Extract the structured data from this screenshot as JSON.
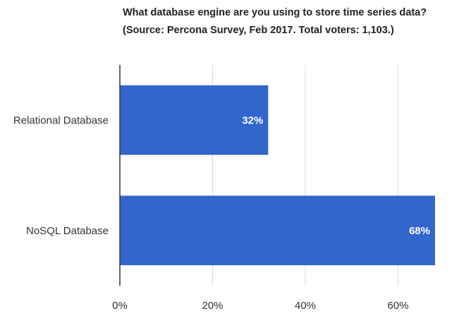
{
  "chart_data": {
    "type": "bar",
    "orientation": "horizontal",
    "title": "What database engine are you using to store time series data?",
    "subtitle": "(Source: Percona Survey, Feb 2017. Total voters: 1,103.)",
    "categories": [
      "Relational Database",
      "NoSQL Database"
    ],
    "values": [
      32,
      68
    ],
    "data_labels": [
      "32%",
      "68%"
    ],
    "x_ticks": [
      0,
      20,
      40,
      60
    ],
    "x_tick_labels": [
      "0%",
      "20%",
      "40%",
      "60%"
    ],
    "xlim": [
      0,
      68
    ],
    "xlabel": "",
    "ylabel": "",
    "grid": true,
    "legend": "none",
    "bar_color": "#3366cc",
    "grid_color": "#d9d9d9",
    "axis_color": "#333333"
  }
}
